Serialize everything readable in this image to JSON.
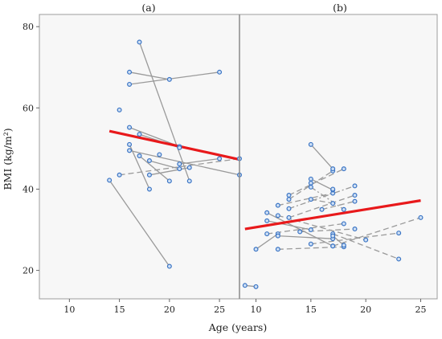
{
  "colors": {
    "point_stroke": "#3a74c4",
    "point_fill": "#cfe0f5",
    "trajectory": "#9a9a9a",
    "trend": "#e8191b",
    "frame": "#9c9c9c",
    "background": "#f7f7f7"
  },
  "chart_data": {
    "type": "scatter",
    "xlabel": "Age (years)",
    "ylabel": "BMI (kg/m²)",
    "ylim": [
      13,
      83
    ],
    "yticks": [
      20,
      40,
      60,
      80
    ],
    "grid": false,
    "panels": [
      {
        "title": "(a)",
        "xlim": [
          7,
          27
        ],
        "xticks": [
          10,
          15,
          20,
          25
        ],
        "trend": {
          "x": [
            14,
            27
          ],
          "y": [
            54.3,
            47.3
          ]
        },
        "subjects": [
          {
            "x": [
              15,
              27
            ],
            "y": [
              43.5,
              47.5
            ],
            "style": "dash"
          },
          {
            "x": [
              16,
              25
            ],
            "y": [
              65.8,
              68.8
            ],
            "style": "solid"
          },
          {
            "x": [
              16,
              20
            ],
            "y": [
              68.8,
              67.0
            ],
            "style": "solid"
          },
          {
            "x": [
              17,
              22
            ],
            "y": [
              76.2,
              42.0
            ],
            "style": "solid"
          },
          {
            "x": [
              16,
              21
            ],
            "y": [
              55.2,
              50.5
            ],
            "style": "solid"
          },
          {
            "x": [
              17,
              21
            ],
            "y": [
              53.5,
              50.2
            ],
            "style": "solid"
          },
          {
            "x": [
              16,
              18
            ],
            "y": [
              51.0,
              40.0
            ],
            "style": "solid"
          },
          {
            "x": [
              16,
              27
            ],
            "y": [
              49.5,
              43.5
            ],
            "style": "solid"
          },
          {
            "x": [
              17,
              20
            ],
            "y": [
              48.2,
              42.0
            ],
            "style": "solid"
          },
          {
            "x": [
              18,
              21
            ],
            "y": [
              47.0,
              45.0
            ],
            "style": "solid"
          },
          {
            "x": [
              14,
              20
            ],
            "y": [
              42.2,
              21.0
            ],
            "style": "solid"
          },
          {
            "x": [
              18,
              22
            ],
            "y": [
              43.5,
              45.3
            ],
            "style": "solid"
          },
          {
            "x": [
              21,
              25
            ],
            "y": [
              46.2,
              47.5
            ],
            "style": "solid"
          },
          {
            "x": [
              15
            ],
            "y": [
              59.5
            ],
            "style": "solid"
          },
          {
            "x": [
              19
            ],
            "y": [
              48.5
            ],
            "style": "solid"
          }
        ]
      },
      {
        "title": "(b)",
        "xlim": [
          8.5,
          26.5
        ],
        "xticks": [
          10,
          15,
          20,
          25
        ],
        "trend": {
          "x": [
            9,
            25
          ],
          "y": [
            30.2,
            37.2
          ]
        },
        "subjects": [
          {
            "x": [
              9,
              10
            ],
            "y": [
              16.3,
              16.0
            ],
            "style": "solid"
          },
          {
            "x": [
              10,
              12
            ],
            "y": [
              25.2,
              29.0
            ],
            "style": "solid"
          },
          {
            "x": [
              11,
              17
            ],
            "y": [
              34.2,
              26.0
            ],
            "style": "solid"
          },
          {
            "x": [
              11,
              15
            ],
            "y": [
              32.2,
              30.0
            ],
            "style": "solid"
          },
          {
            "x": [
              11,
              18
            ],
            "y": [
              29.0,
              31.5
            ],
            "style": "dash"
          },
          {
            "x": [
              12,
              17
            ],
            "y": [
              36.0,
              39.0
            ],
            "style": "dash"
          },
          {
            "x": [
              12,
              20
            ],
            "y": [
              33.5,
              27.5
            ],
            "style": "dash"
          },
          {
            "x": [
              12,
              17
            ],
            "y": [
              28.5,
              27.8
            ],
            "style": "solid"
          },
          {
            "x": [
              12,
              18
            ],
            "y": [
              25.2,
              25.8
            ],
            "style": "dash"
          },
          {
            "x": [
              13,
              18
            ],
            "y": [
              38.5,
              45.0
            ],
            "style": "dash"
          },
          {
            "x": [
              13,
              17
            ],
            "y": [
              37.5,
              44.5
            ],
            "style": "dash"
          },
          {
            "x": [
              13,
              19
            ],
            "y": [
              35.2,
              40.8
            ],
            "style": "dashdot"
          },
          {
            "x": [
              13,
              19
            ],
            "y": [
              33.0,
              38.5
            ],
            "style": "dash"
          },
          {
            "x": [
              14,
              19
            ],
            "y": [
              29.5,
              30.2
            ],
            "style": "dash"
          },
          {
            "x": [
              15,
              23
            ],
            "y": [
              26.5,
              29.2
            ],
            "style": "dash"
          },
          {
            "x": [
              15,
              17
            ],
            "y": [
              51.0,
              45.0
            ],
            "style": "solid"
          },
          {
            "x": [
              15,
              17
            ],
            "y": [
              42.5,
              39.8
            ],
            "style": "solid"
          },
          {
            "x": [
              15,
              18
            ],
            "y": [
              40.5,
              35.0
            ],
            "style": "dashdot"
          },
          {
            "x": [
              15,
              17
            ],
            "y": [
              37.5,
              36.5
            ],
            "style": "dash"
          },
          {
            "x": [
              16,
              19
            ],
            "y": [
              35.0,
              37.0
            ],
            "style": "dash"
          },
          {
            "x": [
              17,
              23
            ],
            "y": [
              29.0,
              22.8
            ],
            "style": "dash"
          },
          {
            "x": [
              17,
              25
            ],
            "y": [
              26.0,
              33.0
            ],
            "style": "dash"
          },
          {
            "x": [
              17,
              18
            ],
            "y": [
              28.5,
              26.2
            ],
            "style": "solid"
          },
          {
            "x": [
              15
            ],
            "y": [
              41.5
            ],
            "style": "solid"
          },
          {
            "x": [
              17
            ],
            "y": [
              40.0
            ],
            "style": "solid"
          }
        ]
      }
    ]
  }
}
